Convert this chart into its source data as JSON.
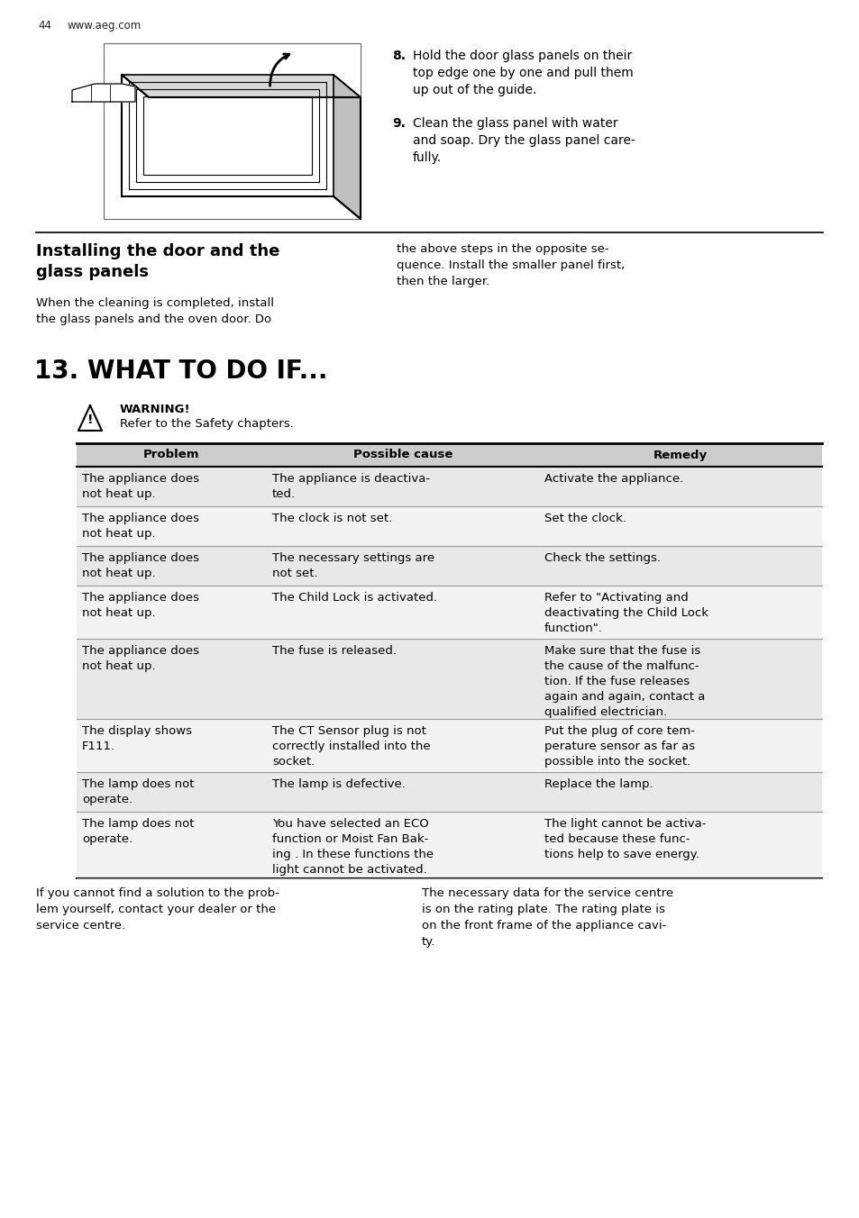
{
  "page_number": "44",
  "website": "www.aeg.com",
  "section_title": "13. WHAT TO DO IF...",
  "installing_title": "Installing the door and the\nglass panels",
  "installing_left_text": "When the cleaning is completed, install\nthe glass panels and the oven door. Do",
  "installing_right_text": "the above steps in the opposite se-\nquence. Install the smaller panel first,\nthen the larger.",
  "step8_label": "8.",
  "step8_text": "Hold the door glass panels on their\ntop edge one by one and pull them\nup out of the guide.",
  "step9_label": "9.",
  "step9_text": "Clean the glass panel with water\nand soap. Dry the glass panel care-\nfully.",
  "warning_title": "WARNING!",
  "warning_text": "Refer to the Safety chapters.",
  "table_headers": [
    "Problem",
    "Possible cause",
    "Remedy"
  ],
  "table_rows": [
    {
      "problem": "The appliance does\nnot heat up.",
      "cause": "The appliance is deactiva-\nted.",
      "remedy": "Activate the appliance.",
      "shaded": true
    },
    {
      "problem": "The appliance does\nnot heat up.",
      "cause": "The clock is not set.",
      "remedy": "Set the clock.",
      "shaded": false
    },
    {
      "problem": "The appliance does\nnot heat up.",
      "cause": "The necessary settings are\nnot set.",
      "remedy": "Check the settings.",
      "shaded": true
    },
    {
      "problem": "The appliance does\nnot heat up.",
      "cause": "The Child Lock is activated.",
      "remedy": "Refer to \"Activating and\ndeactivating the Child Lock\nfunction\".",
      "shaded": false
    },
    {
      "problem": "The appliance does\nnot heat up.",
      "cause": "The fuse is released.",
      "remedy": "Make sure that the fuse is\nthe cause of the malfunc-\ntion. If the fuse releases\nagain and again, contact a\nqualified electrician.",
      "shaded": true
    },
    {
      "problem": "The display shows\nF111.",
      "cause": "The CT Sensor plug is not\ncorrectly installed into the\nsocket.",
      "remedy": "Put the plug of core tem-\nperature sensor as far as\npossible into the socket.",
      "shaded": false
    },
    {
      "problem": "The lamp does not\noperate.",
      "cause": "The lamp is defective.",
      "remedy": "Replace the lamp.",
      "shaded": true
    },
    {
      "problem": "The lamp does not\noperate.",
      "cause": "You have selected an ECO\nfunction or Moist Fan Bak-\ning . In these functions the\nlight cannot be activated.",
      "remedy": "The light cannot be activa-\nted because these func-\ntions help to save energy.",
      "shaded": false
    }
  ],
  "footer_left": "If you cannot find a solution to the prob-\nlem yourself, contact your dealer or the\nservice centre.",
  "footer_right": "The necessary data for the service centre\nis on the rating plate. The rating plate is\non the front frame of the appliance cavi-\nty.",
  "bg_color": "#ffffff",
  "shaded_color": "#e8e8e8",
  "unshaded_color": "#f2f2f2",
  "header_bg_color": "#cccccc"
}
